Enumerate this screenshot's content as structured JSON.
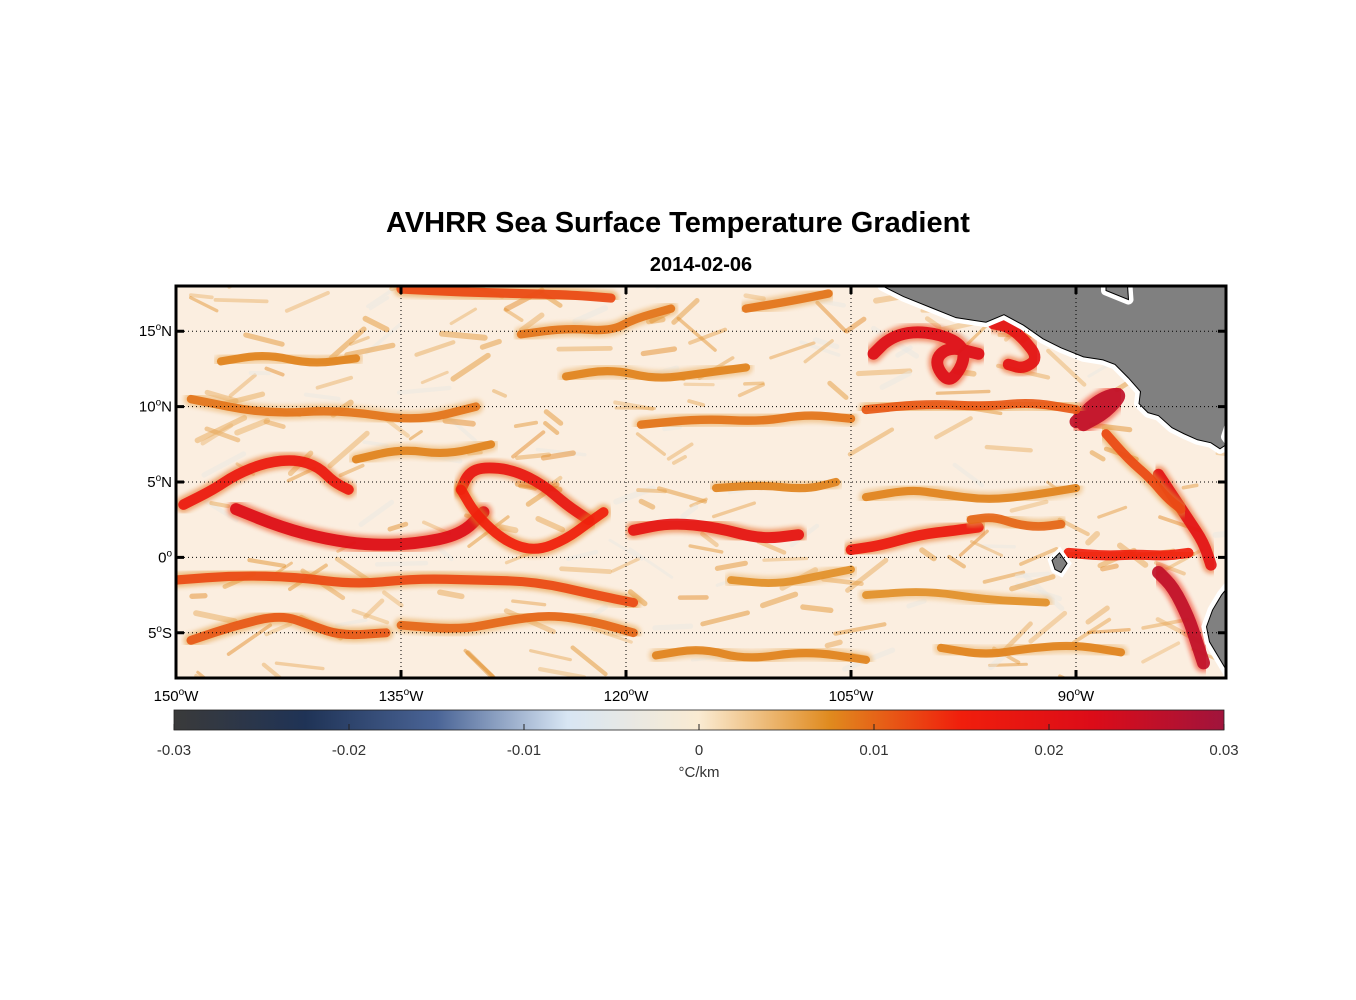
{
  "title": "AVHRR Sea Surface Temperature Gradient",
  "subtitle": "2014-02-06",
  "map": {
    "lon_range": [
      -150,
      -80
    ],
    "lat_range": [
      -8,
      18
    ],
    "lon_ticks": [
      {
        "value": -150,
        "num": "150",
        "hem": "W"
      },
      {
        "value": -135,
        "num": "135",
        "hem": "W"
      },
      {
        "value": -120,
        "num": "120",
        "hem": "W"
      },
      {
        "value": -105,
        "num": "105",
        "hem": "W"
      },
      {
        "value": -90,
        "num": "90",
        "hem": "W"
      }
    ],
    "lat_ticks": [
      {
        "value": 15,
        "num": "15",
        "hem": "N"
      },
      {
        "value": 10,
        "num": "10",
        "hem": "N"
      },
      {
        "value": 5,
        "num": "5",
        "hem": "N"
      },
      {
        "value": 0,
        "num": "0",
        "hem": ""
      },
      {
        "value": -5,
        "num": "5",
        "hem": "S"
      }
    ],
    "degree_symbol": "o",
    "land_color": "#808080",
    "ocean_background": "#fbeee0",
    "grid": "dotted"
  },
  "colorbar": {
    "min": -0.03,
    "max": 0.03,
    "tick_labels": [
      "-0.03",
      "-0.02",
      "-0.01",
      "0",
      "0.01",
      "0.02",
      "0.03"
    ],
    "tick_values": [
      -0.03,
      -0.02,
      -0.01,
      0,
      0.01,
      0.02,
      0.03
    ],
    "unit": "°C/km",
    "colors": [
      "#3a3a3a",
      "#1f3356",
      "#4a6496",
      "#d8e6f4",
      "#faebd2",
      "#e08a1e",
      "#f01e0c",
      "#dc0c18",
      "#a0143c"
    ]
  },
  "fronts": [
    {
      "lons": [
        -149.5,
        -147.5,
        -146,
        -144,
        -142,
        -140.5,
        -139.5,
        -138.5
      ],
      "lats": [
        3.5,
        4.5,
        5.5,
        6.3,
        6.5,
        6.0,
        5.0,
        4.5
      ],
      "value": 0.017
    },
    {
      "lons": [
        -146,
        -143,
        -140,
        -137,
        -134,
        -131,
        -129.5
      ],
      "lats": [
        3.2,
        2.0,
        1.2,
        0.8,
        0.9,
        1.5,
        3.0
      ],
      "value": 0.022
    },
    {
      "lons": [
        -131,
        -130.5,
        -129.5,
        -127.5,
        -125.5,
        -124,
        -122.5
      ],
      "lats": [
        4.5,
        5.6,
        6.0,
        5.8,
        4.8,
        3.5,
        2.5
      ],
      "value": 0.018
    },
    {
      "lons": [
        -131,
        -130,
        -128,
        -126,
        -124,
        -122.5,
        -121.5
      ],
      "lats": [
        4.5,
        2.8,
        1.0,
        0.4,
        1.2,
        2.3,
        3.0
      ],
      "value": 0.015
    },
    {
      "lons": [
        -119.5,
        -117,
        -114,
        -111,
        -108.5
      ],
      "lats": [
        1.8,
        2.3,
        2.0,
        1.2,
        1.5
      ],
      "value": 0.019
    },
    {
      "lons": [
        -105,
        -103,
        -100.5,
        -98,
        -96.5
      ],
      "lats": [
        0.5,
        0.8,
        1.5,
        1.8,
        2.0
      ],
      "value": 0.017
    },
    {
      "lons": [
        -103.5,
        -102.5,
        -101,
        -99,
        -97.5,
        -97.5,
        -98.5,
        -99.5,
        -98.5,
        -96.5
      ],
      "lats": [
        13.5,
        14.5,
        15.0,
        14.8,
        14.0,
        12.8,
        11.5,
        13.0,
        14.0,
        13.5
      ],
      "value": 0.022
    },
    {
      "lons": [
        -95.5,
        -94.5,
        -93.5,
        -92.5,
        -93.5,
        -94.5
      ],
      "lats": [
        15.5,
        15.3,
        14.5,
        13.2,
        12.5,
        12.8
      ],
      "value": 0.02
    },
    {
      "lons": [
        -90,
        -88.5,
        -86.8,
        -88.0,
        -89.5
      ],
      "lats": [
        9.0,
        10.5,
        11.0,
        9.6,
        8.8
      ],
      "value": 0.026
    },
    {
      "lons": [
        -84.5,
        -83.5,
        -82.5,
        -81.5,
        -81.0
      ],
      "lats": [
        5.5,
        4.0,
        2.5,
        1.0,
        -0.5
      ],
      "value": 0.02
    },
    {
      "lons": [
        -84.5,
        -83.5,
        -82.5,
        -82.0,
        -81.5
      ],
      "lats": [
        -1.0,
        -2.0,
        -4.0,
        -5.5,
        -7.0
      ],
      "value": 0.026
    },
    {
      "lons": [
        -90.5,
        -88,
        -86,
        -84,
        -82.5
      ],
      "lats": [
        0.3,
        0.1,
        0.2,
        0.1,
        0.3
      ],
      "value": 0.015
    },
    {
      "lons": [
        -150,
        -146,
        -142,
        -138,
        -134,
        -130,
        -126,
        -122,
        -119.5
      ],
      "lats": [
        -1.5,
        -1.2,
        -1.3,
        -1.8,
        -1.4,
        -1.5,
        -1.6,
        -2.5,
        -3.0
      ],
      "value": 0.012
    },
    {
      "lons": [
        -149,
        -146,
        -143,
        -141,
        -139,
        -136
      ],
      "lats": [
        -5.5,
        -4.5,
        -3.8,
        -4.5,
        -5.2,
        -5.0
      ],
      "value": 0.011
    },
    {
      "lons": [
        -135,
        -131,
        -128,
        -125,
        -122,
        -119.5
      ],
      "lats": [
        -4.5,
        -4.8,
        -4.2,
        -3.8,
        -4.3,
        -5.0
      ],
      "value": 0.01
    },
    {
      "lons": [
        -149,
        -144,
        -139,
        -134,
        -130
      ],
      "lats": [
        10.5,
        9.5,
        9.8,
        9.0,
        10.0
      ],
      "value": 0.009
    },
    {
      "lons": [
        -135,
        -131,
        -127,
        -123.5,
        -121
      ],
      "lats": [
        17.8,
        17.6,
        17.5,
        17.4,
        17.2
      ],
      "value": 0.012
    },
    {
      "lons": [
        -127,
        -124,
        -121,
        -119.5,
        -117
      ],
      "lats": [
        14.8,
        15.2,
        15.0,
        15.8,
        16.5
      ],
      "value": 0.009
    },
    {
      "lons": [
        -119,
        -115,
        -111,
        -108,
        -105
      ],
      "lats": [
        8.8,
        9.2,
        9.0,
        9.5,
        9.2
      ],
      "value": 0.009
    },
    {
      "lons": [
        -104,
        -100,
        -96,
        -93,
        -90
      ],
      "lats": [
        9.8,
        10.2,
        10.0,
        10.3,
        9.8
      ],
      "value": 0.011
    },
    {
      "lons": [
        -114,
        -111,
        -108,
        -106
      ],
      "lats": [
        4.6,
        4.8,
        4.5,
        5.0
      ],
      "value": 0.008
    },
    {
      "lons": [
        -104,
        -101,
        -99,
        -96,
        -93,
        -90
      ],
      "lats": [
        4.0,
        4.5,
        4.2,
        3.8,
        4.1,
        4.6
      ],
      "value": 0.008
    },
    {
      "lons": [
        -97,
        -95.5,
        -94,
        -92.5,
        -91
      ],
      "lats": [
        2.5,
        2.7,
        2.2,
        2.0,
        2.2
      ],
      "value": 0.01
    },
    {
      "lons": [
        -88,
        -86.5,
        -85,
        -84,
        -83
      ],
      "lats": [
        8.2,
        6.5,
        5.2,
        4.0,
        3.2
      ],
      "value": 0.012
    },
    {
      "lons": [
        -113,
        -110,
        -107,
        -105
      ],
      "lats": [
        -1.5,
        -1.8,
        -1.2,
        -0.8
      ],
      "value": 0.007
    },
    {
      "lons": [
        -104,
        -100,
        -96,
        -92
      ],
      "lats": [
        -2.5,
        -2.2,
        -2.8,
        -3.0
      ],
      "value": 0.007
    },
    {
      "lons": [
        -118,
        -115,
        -112,
        -108,
        -104
      ],
      "lats": [
        -6.5,
        -6.0,
        -6.8,
        -6.2,
        -6.8
      ],
      "value": 0.008
    },
    {
      "lons": [
        -99,
        -96,
        -93,
        -90,
        -87
      ],
      "lats": [
        -6.0,
        -6.5,
        -6.0,
        -5.8,
        -6.3
      ],
      "value": 0.008
    },
    {
      "lons": [
        -147,
        -144,
        -141,
        -138
      ],
      "lats": [
        13.0,
        13.5,
        12.8,
        13.2
      ],
      "value": 0.008
    },
    {
      "lons": [
        -138,
        -135,
        -132,
        -129
      ],
      "lats": [
        6.5,
        7.2,
        6.8,
        7.5
      ],
      "value": 0.008
    },
    {
      "lons": [
        -124,
        -121,
        -118,
        -115,
        -112
      ],
      "lats": [
        12.0,
        12.5,
        11.8,
        12.2,
        12.6
      ],
      "value": 0.008
    },
    {
      "lons": [
        -112,
        -109,
        -106.5
      ],
      "lats": [
        16.5,
        17.0,
        17.5
      ],
      "value": 0.009
    }
  ]
}
